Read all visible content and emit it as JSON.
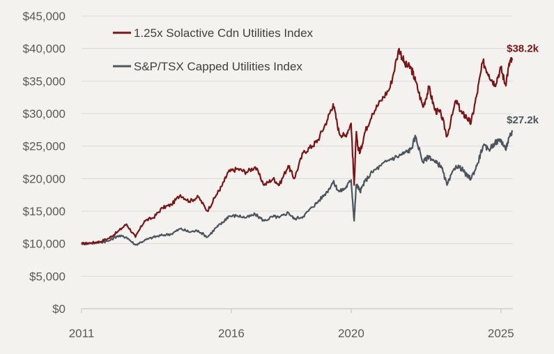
{
  "chart_data": {
    "type": "line",
    "title": "",
    "xlabel": "",
    "ylabel": "",
    "xlim": [
      2011.0,
      2025.4
    ],
    "ylim": [
      0,
      45000
    ],
    "y_ticks": [
      0,
      5000,
      10000,
      15000,
      20000,
      25000,
      30000,
      35000,
      40000,
      45000
    ],
    "y_tick_labels": [
      "$0",
      "$5,000",
      "$10,000",
      "$15,000",
      "$20,000",
      "$25,000",
      "$30,000",
      "$35,000",
      "$40,000",
      "$45,000"
    ],
    "x_ticks": [
      2011,
      2016,
      2020,
      2025
    ],
    "x_tick_labels": [
      "2011",
      "2016",
      "2020",
      "2025"
    ],
    "grid": "horizontal",
    "legend": "top-left",
    "series": [
      {
        "name": "1.25x Solactive Cdn Utilities Index",
        "color": "#7b1416",
        "end_label": "$38.2k",
        "x": [
          2011.0,
          2011.3,
          2011.6,
          2011.9,
          2012.2,
          2012.5,
          2012.8,
          2013.1,
          2013.4,
          2013.7,
          2014.0,
          2014.3,
          2014.6,
          2014.9,
          2015.2,
          2015.5,
          2015.7,
          2015.9,
          2016.2,
          2016.5,
          2016.8,
          2017.1,
          2017.4,
          2017.6,
          2017.9,
          2018.1,
          2018.4,
          2018.7,
          2018.9,
          2019.2,
          2019.4,
          2019.6,
          2019.8,
          2020.0,
          2020.1,
          2020.17,
          2020.22,
          2020.3,
          2020.45,
          2020.7,
          2021.0,
          2021.3,
          2021.6,
          2021.8,
          2022.0,
          2022.15,
          2022.4,
          2022.6,
          2022.8,
          2023.0,
          2023.2,
          2023.5,
          2023.7,
          2023.85,
          2024.0,
          2024.2,
          2024.4,
          2024.6,
          2024.8,
          2025.0,
          2025.15,
          2025.3,
          2025.38
        ],
        "y": [
          10000,
          10100,
          10300,
          10800,
          11800,
          13000,
          11000,
          13500,
          14000,
          15500,
          16000,
          17500,
          16500,
          17200,
          15000,
          17500,
          19000,
          21000,
          21500,
          21000,
          21800,
          19000,
          20000,
          19000,
          22000,
          20000,
          24000,
          25000,
          26000,
          29000,
          31500,
          27000,
          26500,
          28500,
          19000,
          27000,
          25000,
          24000,
          27000,
          30000,
          32000,
          34000,
          40000,
          37500,
          37000,
          35000,
          31000,
          34000,
          30500,
          30000,
          26500,
          32000,
          30000,
          29500,
          28500,
          33000,
          38000,
          36000,
          34500,
          37000,
          34500,
          38000,
          38200
        ]
      },
      {
        "name": "S&P/TSX Capped Utilities Index",
        "color": "#4c555d",
        "end_label": "$27.2k",
        "x": [
          2011.0,
          2011.3,
          2011.6,
          2011.9,
          2012.2,
          2012.5,
          2012.8,
          2013.1,
          2013.4,
          2013.7,
          2014.0,
          2014.3,
          2014.6,
          2014.9,
          2015.2,
          2015.5,
          2015.7,
          2015.9,
          2016.2,
          2016.5,
          2016.8,
          2017.1,
          2017.4,
          2017.6,
          2017.9,
          2018.1,
          2018.4,
          2018.7,
          2018.9,
          2019.2,
          2019.4,
          2019.6,
          2019.8,
          2020.0,
          2020.1,
          2020.17,
          2020.22,
          2020.3,
          2020.45,
          2020.7,
          2021.0,
          2021.3,
          2021.6,
          2021.8,
          2022.0,
          2022.15,
          2022.4,
          2022.6,
          2022.8,
          2023.0,
          2023.2,
          2023.5,
          2023.7,
          2023.85,
          2024.0,
          2024.2,
          2024.4,
          2024.6,
          2024.8,
          2025.0,
          2025.15,
          2025.3,
          2025.38
        ],
        "y": [
          10000,
          10050,
          10200,
          10400,
          11200,
          11000,
          9800,
          10500,
          11000,
          11300,
          11500,
          12300,
          11800,
          12000,
          11000,
          12500,
          13200,
          14200,
          14300,
          14000,
          14500,
          13500,
          14200,
          14000,
          14800,
          13800,
          14200,
          15600,
          16500,
          18000,
          19500,
          18000,
          18500,
          19800,
          13500,
          19000,
          18800,
          18000,
          19500,
          21000,
          22000,
          23000,
          23500,
          24000,
          24500,
          26500,
          22500,
          23500,
          22500,
          22000,
          19000,
          22000,
          21500,
          20500,
          20000,
          22000,
          25000,
          24500,
          25500,
          26000,
          24500,
          26500,
          27200
        ]
      }
    ]
  }
}
